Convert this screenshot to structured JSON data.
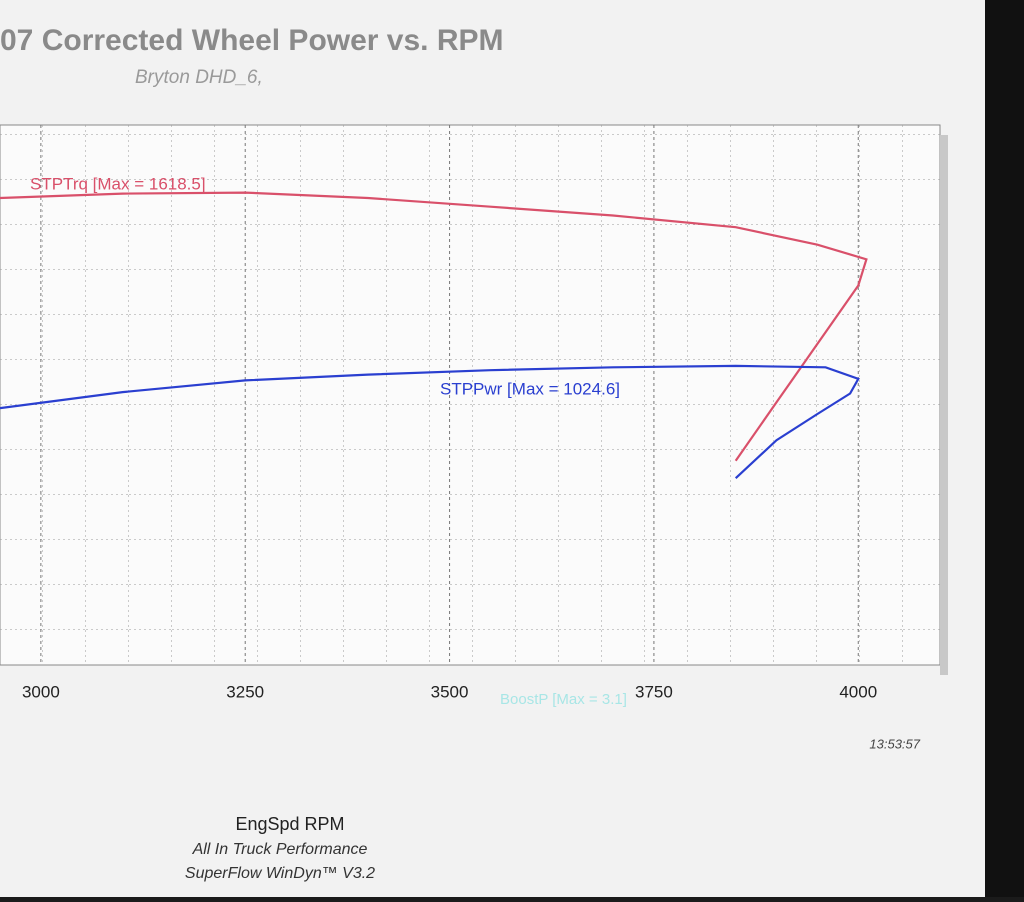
{
  "chart_data": {
    "type": "line",
    "title": "07 Corrected Wheel Power vs. RPM",
    "subtitle": "Bryton DHD_6,",
    "xlabel": "EngSpd RPM",
    "footer": [
      "All In Truck Performance",
      "SuperFlow WinDyn™ V3.2"
    ],
    "timestamp": "13:53:57",
    "annotations": [
      "BoostP [Max = 3.1]"
    ],
    "xlim": [
      2950,
      4100
    ],
    "xticks": [
      3000,
      3250,
      3500,
      3750,
      4000
    ],
    "ylim": [
      0,
      1850
    ],
    "grid": true,
    "series": [
      {
        "name": "STPTrq [Max = 1618.5]",
        "color": "#d9506a",
        "x": [
          2950,
          3100,
          3250,
          3400,
          3550,
          3700,
          3850,
          3950,
          4010,
          4000,
          3950,
          3900,
          3850
        ],
        "values": [
          1600,
          1615,
          1618.5,
          1600,
          1570,
          1540,
          1500,
          1440,
          1390,
          1300,
          1100,
          900,
          700
        ]
      },
      {
        "name": "STPPwr [Max = 1024.6]",
        "color": "#2a3fd0",
        "x": [
          2950,
          3100,
          3250,
          3400,
          3550,
          3700,
          3850,
          3960,
          4000,
          3990,
          3950,
          3900,
          3850
        ],
        "values": [
          880,
          935,
          975,
          995,
          1010,
          1020,
          1024.6,
          1020,
          980,
          930,
          860,
          770,
          640
        ]
      }
    ]
  }
}
